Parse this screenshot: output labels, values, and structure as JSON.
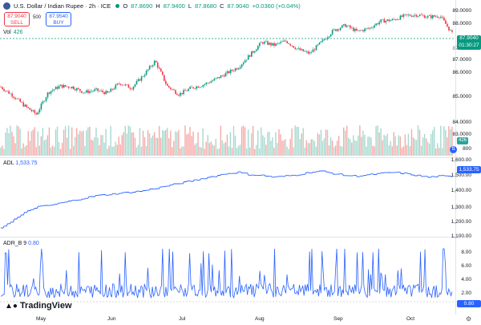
{
  "header": {
    "symbol_title": "U.S. Dollar / Indian Rupee · 2h · ICE",
    "open_label": "O",
    "open": "87.8690",
    "high_label": "H",
    "high": "87.9400",
    "low_label": "L",
    "low": "87.8680",
    "close_label": "C",
    "close": "87.9040",
    "change": "+0.0360 (+0.04%)"
  },
  "trade": {
    "sell_price": "87.9040",
    "sell_label": "SELL",
    "spread": "500",
    "buy_price": "87.9540",
    "buy_label": "BUY"
  },
  "volume": {
    "label": "Vol",
    "value": "426"
  },
  "adl": {
    "label": "ADL",
    "value": "1,533.75"
  },
  "adrb": {
    "label": "ADR_B",
    "param": "9",
    "value": "0.80"
  },
  "price_axis": [
    "89.0000",
    "88.0000",
    "87.0000",
    "86.0000",
    "85.0000",
    "84.0000",
    "83.0000"
  ],
  "price_axis_partial": "87.5000",
  "price_tag": {
    "price": "87.9040",
    "countdown": "01:30:27"
  },
  "volume_tag": "426",
  "volume_axis_partial": "800",
  "adl_axis": [
    "1,600.00",
    "1,500.00",
    "1,400.00",
    "1,300.00",
    "1,200.00",
    "1,100.00"
  ],
  "adl_tag": "1,533.75",
  "adrb_axis": [
    "8.00",
    "6.00",
    "4.00",
    "2.00"
  ],
  "adrb_tag": "0.80",
  "dates": [
    "May",
    "Jun",
    "Jul",
    "Aug",
    "Sep",
    "Oct"
  ],
  "logo": "TradingView",
  "colors": {
    "up": "#089981",
    "down": "#f23645",
    "line": "#2962ff",
    "accent": "#2962ff"
  },
  "chart_data": [
    {
      "type": "line",
      "series": [
        {
          "values": [
            85.35,
            84.95,
            84.45,
            84.05,
            85.1,
            85.4,
            85.35,
            85.1,
            85.2,
            85.05,
            85.55,
            85.3,
            85.9,
            86.6,
            85.4,
            85.0,
            85.3,
            85.45,
            85.7,
            86.0,
            86.3,
            86.9,
            87.5,
            87.35,
            87.55,
            87.15,
            86.95,
            87.5,
            88.05,
            88.3,
            88.0,
            88.15,
            88.5,
            88.55,
            88.75,
            88.8,
            88.7,
            88.75,
            87.9
          ]
        }
      ],
      "ylim": [
        82.8,
        89.2
      ]
    },
    {
      "type": "line",
      "series": [
        {
          "name": "ADL",
          "values": [
            1120,
            1180,
            1240,
            1290,
            1300,
            1320,
            1340,
            1360,
            1380,
            1390,
            1400,
            1410,
            1420,
            1440,
            1460,
            1480,
            1500,
            1520,
            1540,
            1560,
            1570,
            1550,
            1545,
            1530,
            1540,
            1550,
            1570,
            1580,
            1560,
            1545,
            1540,
            1550,
            1560,
            1570,
            1560,
            1545,
            1530,
            1540,
            1533.75
          ]
        }
      ],
      "ylim": [
        1080,
        1640
      ]
    }
  ]
}
